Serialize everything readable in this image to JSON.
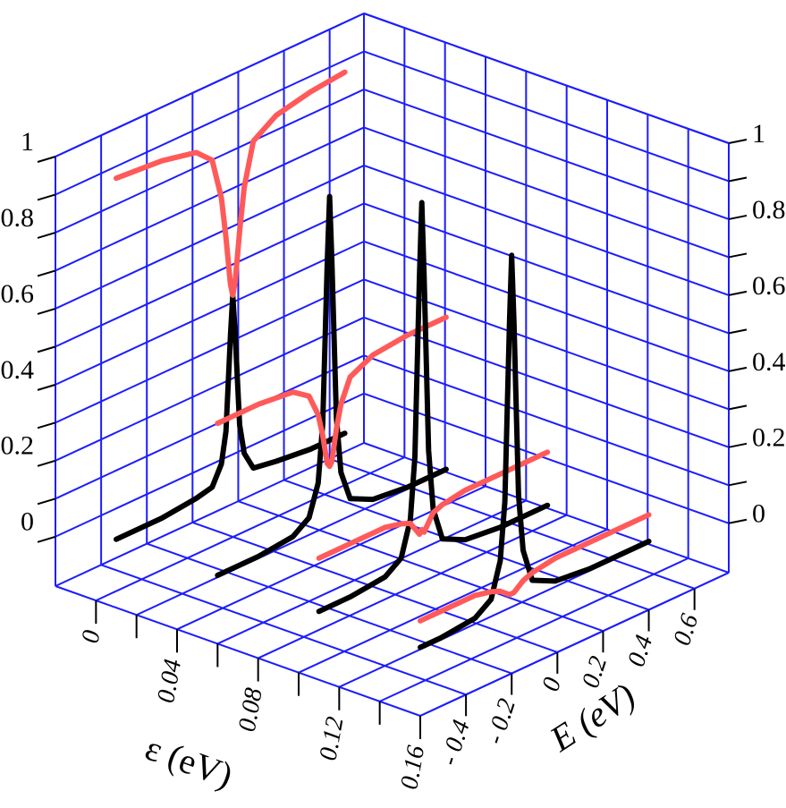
{
  "chart_data": {
    "type": "line3d",
    "xlabel": "ε (eV)",
    "ylabel": "E (eV)",
    "xlim": [
      -0.02,
      0.16
    ],
    "xticks": [
      0,
      0.04,
      0.08,
      0.12,
      0.16
    ],
    "xminorticks": [
      0.02,
      0.06,
      0.1,
      0.14
    ],
    "ylim": [
      -0.6,
      0.75
    ],
    "yticks": [
      {
        "value": -0.4,
        "label": "- 0.4"
      },
      {
        "value": -0.2,
        "label": "- 0.2"
      },
      0,
      0.2,
      0.4,
      0.6
    ],
    "zlim": [
      -0.13,
      1
    ],
    "zticks": [
      0,
      0.2,
      0.4,
      0.6,
      0.8,
      1
    ],
    "zminorticks": [
      0.1,
      0.3,
      0.5,
      0.7,
      0.9
    ],
    "grid": true,
    "grid_color": "#1c1cff",
    "series": [
      {
        "epsilon": 0.01,
        "color": "#000000",
        "x": [
          -0.6,
          -0.4,
          -0.25,
          -0.18,
          -0.14,
          -0.12,
          -0.1,
          -0.09,
          -0.08,
          -0.06,
          -0.04,
          0,
          0.1,
          0.25,
          0.4
        ],
        "values": [
          0.05,
          0.05,
          0.06,
          0.07,
          0.12,
          0.2,
          0.45,
          0.55,
          0.45,
          0.2,
          0.12,
          0.07,
          0.06,
          0.05,
          0.05
        ]
      },
      {
        "epsilon": 0.01,
        "color": "#ff5a5a",
        "x": [
          -0.6,
          -0.4,
          -0.25,
          -0.18,
          -0.14,
          -0.12,
          -0.1,
          -0.09,
          -0.08,
          -0.06,
          -0.04,
          0,
          0.1,
          0.25,
          0.4
        ],
        "values": [
          1,
          0.99,
          0.97,
          0.93,
          0.82,
          0.71,
          0.58,
          0.55,
          0.58,
          0.71,
          0.82,
          0.93,
          0.97,
          0.99,
          1
        ]
      },
      {
        "epsilon": 0.06,
        "color": "#000000",
        "x": [
          -0.6,
          -0.42,
          -0.27,
          -0.2,
          -0.16,
          -0.14,
          -0.12,
          -0.11,
          -0.1,
          -0.08,
          -0.06,
          -0.02,
          0.08,
          0.23,
          0.4
        ],
        "values": [
          0.05,
          0.05,
          0.06,
          0.09,
          0.17,
          0.32,
          0.74,
          0.91,
          0.74,
          0.32,
          0.17,
          0.09,
          0.06,
          0.05,
          0.05
        ]
      },
      {
        "epsilon": 0.06,
        "color": "#ff5a5a",
        "x": [
          -0.6,
          -0.42,
          -0.27,
          -0.2,
          -0.16,
          -0.14,
          -0.12,
          -0.11,
          -0.1,
          -0.08,
          -0.06,
          -0.02,
          0.08,
          0.23,
          0.4
        ],
        "values": [
          0.45,
          0.45,
          0.44,
          0.41,
          0.35,
          0.29,
          0.21,
          0.2,
          0.21,
          0.29,
          0.35,
          0.41,
          0.44,
          0.45,
          0.45
        ]
      },
      {
        "epsilon": 0.11,
        "color": "#000000",
        "x": [
          -0.6,
          -0.46,
          -0.31,
          -0.24,
          -0.2,
          -0.18,
          -0.16,
          -0.15,
          -0.14,
          -0.12,
          -0.1,
          -0.06,
          0.04,
          0.19,
          0.4
        ],
        "values": [
          0.05,
          0.05,
          0.06,
          0.09,
          0.18,
          0.34,
          0.81,
          1,
          0.81,
          0.34,
          0.18,
          0.09,
          0.06,
          0.05,
          0.05
        ]
      },
      {
        "epsilon": 0.11,
        "color": "#ff5a5a",
        "x": [
          -0.6,
          -0.46,
          -0.31,
          -0.24,
          -0.2,
          -0.18,
          -0.16,
          -0.15,
          -0.14,
          -0.12,
          -0.1,
          -0.06,
          0.04,
          0.19,
          0.4
        ],
        "values": [
          0.19,
          0.19,
          0.19,
          0.18,
          0.17,
          0.15,
          0.13,
          0.14,
          0.13,
          0.15,
          0.17,
          0.18,
          0.19,
          0.19,
          0.19
        ]
      },
      {
        "epsilon": 0.16,
        "color": "#000000",
        "x": [
          -0.6,
          -0.51,
          -0.36,
          -0.29,
          -0.25,
          -0.23,
          -0.21,
          -0.2,
          -0.19,
          -0.17,
          -0.15,
          -0.11,
          -0.01,
          0.14,
          0.4
        ],
        "values": [
          0.05,
          0.05,
          0.06,
          0.09,
          0.18,
          0.33,
          0.79,
          0.97,
          0.79,
          0.33,
          0.18,
          0.09,
          0.06,
          0.05,
          0.05
        ]
      },
      {
        "epsilon": 0.16,
        "color": "#ff5a5a",
        "x": [
          -0.6,
          -0.51,
          -0.36,
          -0.29,
          -0.25,
          -0.23,
          -0.21,
          -0.2,
          -0.19,
          -0.17,
          -0.15,
          -0.11,
          -0.01,
          0.14,
          0.4
        ],
        "values": [
          0.12,
          0.12,
          0.12,
          0.11,
          0.1,
          0.09,
          0.08,
          0.08,
          0.08,
          0.09,
          0.1,
          0.11,
          0.12,
          0.12,
          0.12
        ]
      }
    ]
  }
}
